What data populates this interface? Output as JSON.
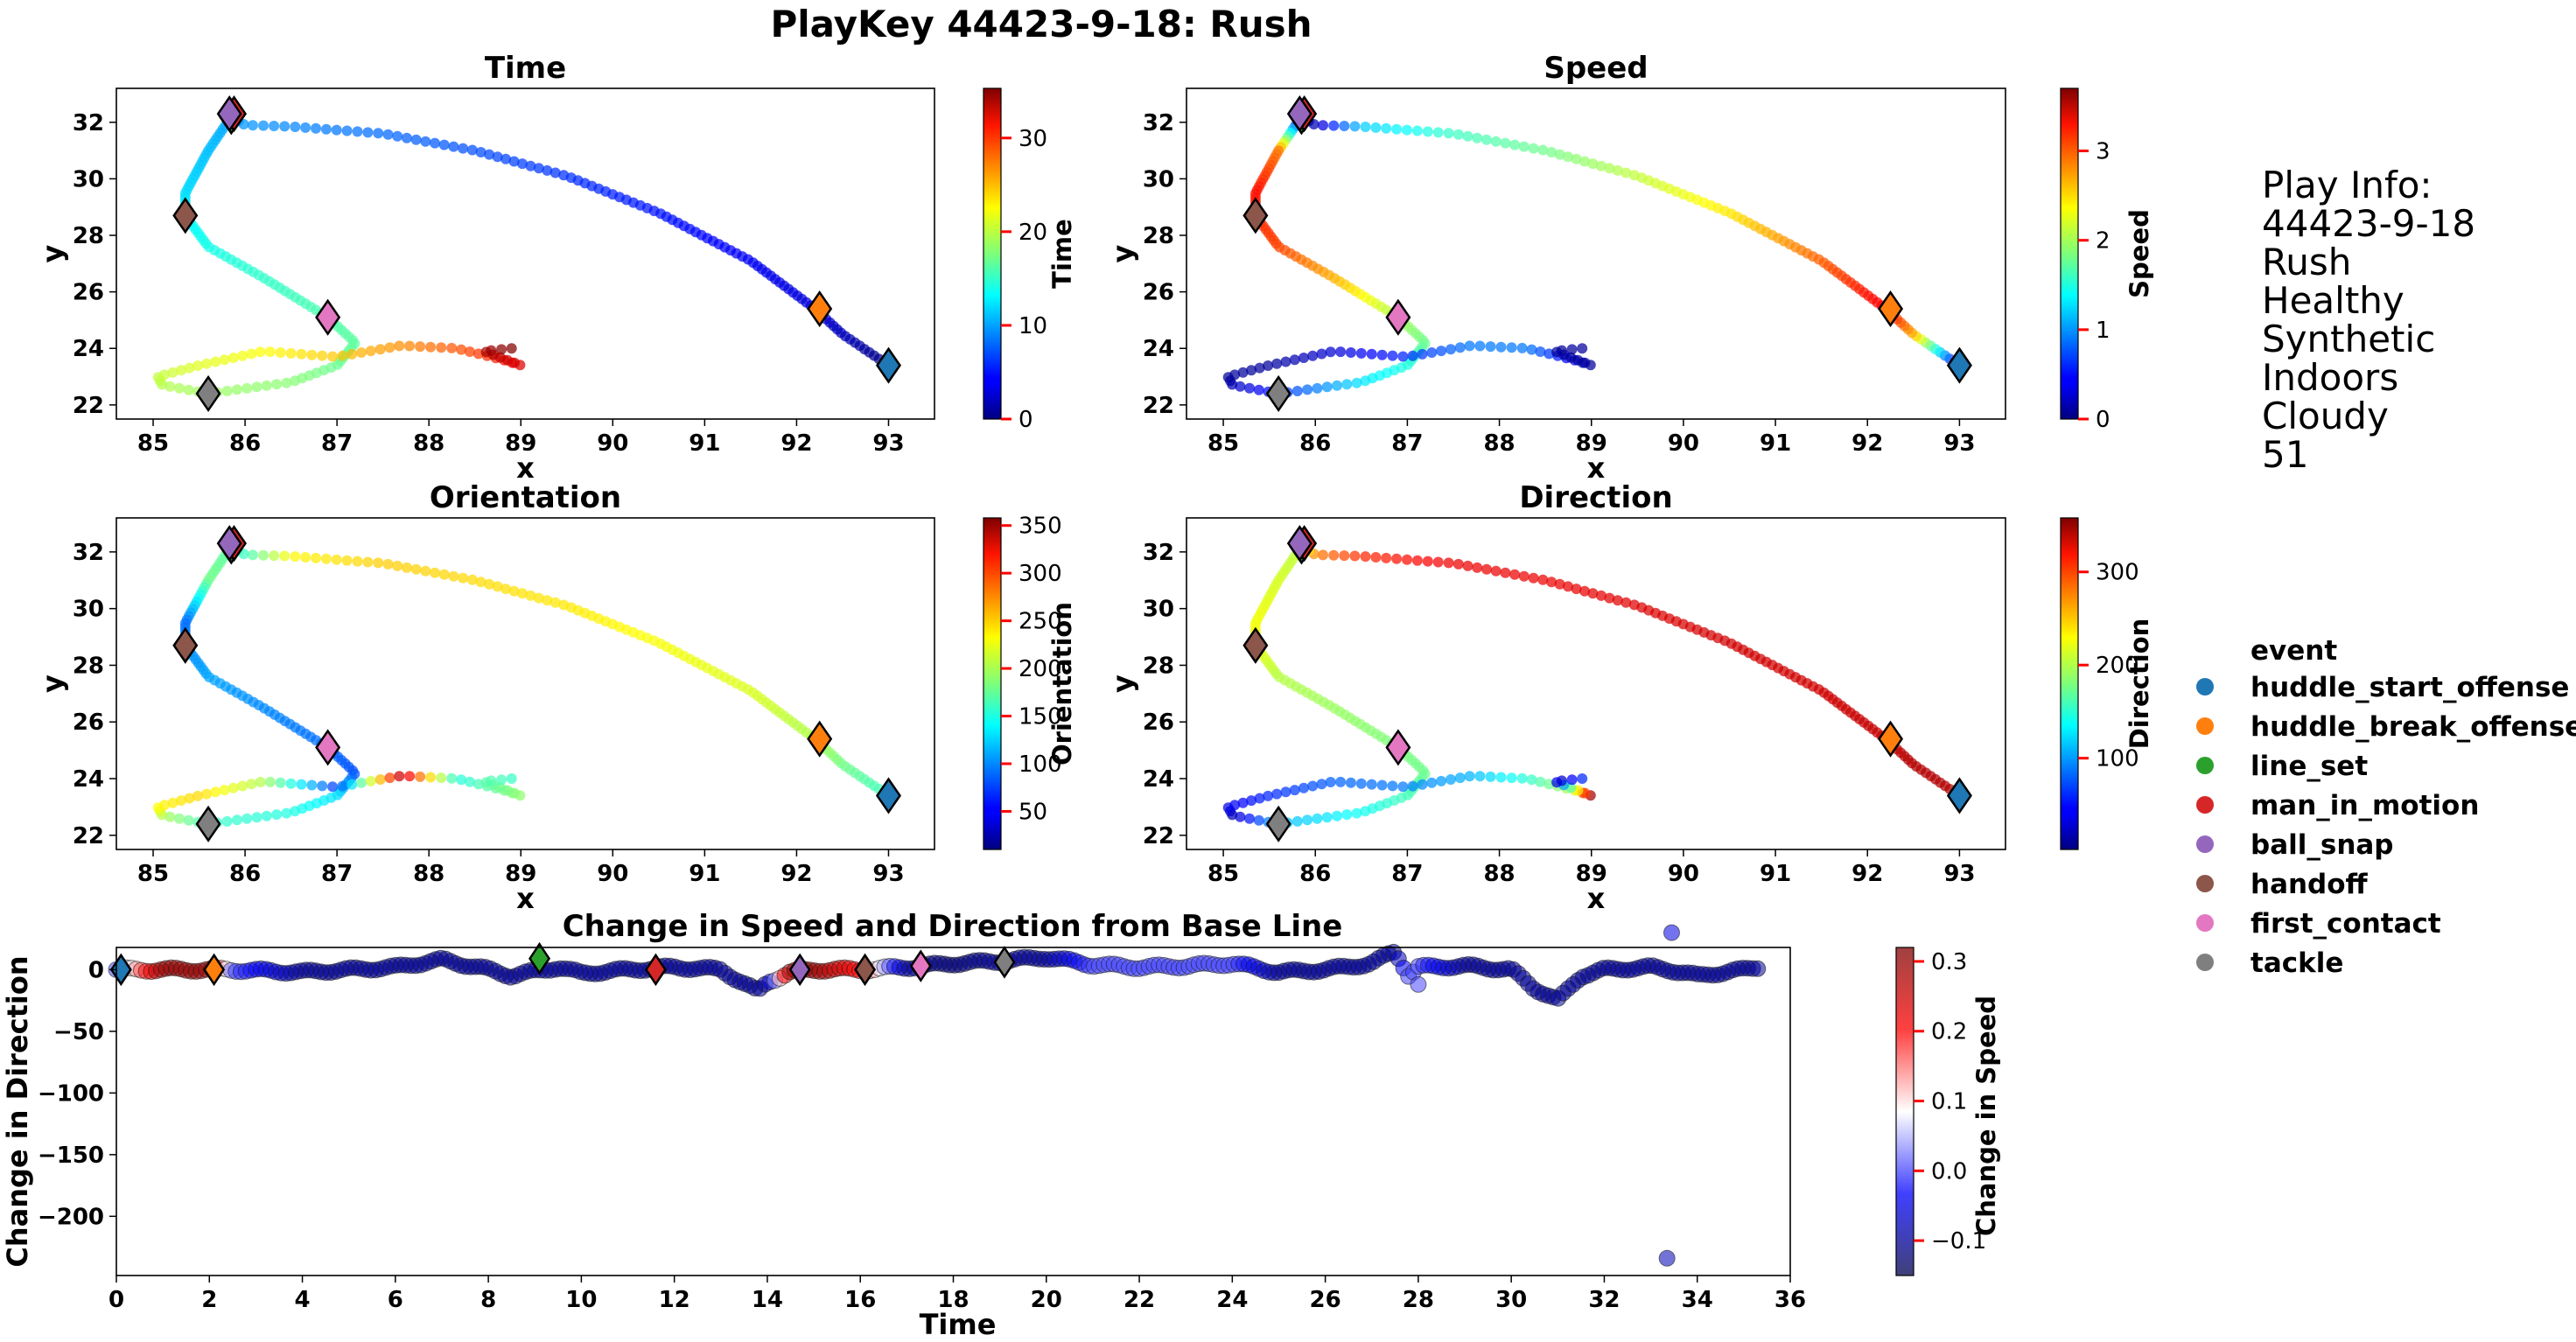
{
  "figure": {
    "title": "PlayKey 44423-9-18: Rush"
  },
  "play_info": {
    "lines": [
      "Play Info:",
      "44423-9-18",
      "Rush",
      "Healthy",
      "Synthetic",
      "Indoors",
      "Cloudy",
      "51"
    ]
  },
  "legend": {
    "title": "event",
    "items": [
      {
        "label": "huddle_start_offense",
        "color": "#1f77b4"
      },
      {
        "label": "huddle_break_offense",
        "color": "#ff7f0e"
      },
      {
        "label": "line_set",
        "color": "#2ca02c"
      },
      {
        "label": "man_in_motion",
        "color": "#d62728"
      },
      {
        "label": "ball_snap",
        "color": "#9467bd"
      },
      {
        "label": "handoff",
        "color": "#8c564b"
      },
      {
        "label": "first_contact",
        "color": "#e377c2"
      },
      {
        "label": "tackle",
        "color": "#7f7f7f"
      }
    ]
  },
  "chart_data": [
    {
      "type": "scatter",
      "title": "Time",
      "xlabel": "x",
      "ylabel": "y",
      "xlim": [
        84.6,
        93.5
      ],
      "ylim": [
        21.5,
        33.2
      ],
      "xticks": [
        85,
        86,
        87,
        88,
        89,
        90,
        91,
        92,
        93
      ],
      "yticks": [
        22,
        24,
        26,
        28,
        30,
        32
      ],
      "colorbar": {
        "label": "Time",
        "range": [
          0,
          35.3
        ],
        "ticks": [
          0,
          10,
          20,
          30
        ],
        "colormap": "jet"
      },
      "track": [
        [
          93.0,
          23.4
        ],
        [
          92.5,
          24.5
        ],
        [
          92.2,
          25.4
        ],
        [
          91.5,
          27.1
        ],
        [
          90.5,
          28.8
        ],
        [
          89.5,
          30.1
        ],
        [
          88.5,
          31.0
        ],
        [
          87.5,
          31.6
        ],
        [
          86.5,
          31.85
        ],
        [
          86.0,
          31.9
        ],
        [
          85.85,
          32.2
        ],
        [
          85.6,
          31.0
        ],
        [
          85.35,
          29.5
        ],
        [
          85.35,
          28.7
        ],
        [
          85.6,
          27.6
        ],
        [
          86.2,
          26.5
        ],
        [
          86.9,
          25.1
        ],
        [
          87.2,
          24.2
        ],
        [
          87.0,
          23.4
        ],
        [
          86.5,
          22.8
        ],
        [
          85.6,
          22.4
        ],
        [
          85.1,
          22.7
        ],
        [
          85.05,
          23.0
        ],
        [
          85.5,
          23.4
        ],
        [
          86.2,
          23.9
        ],
        [
          87.0,
          23.7
        ],
        [
          87.7,
          24.1
        ],
        [
          88.3,
          24.0
        ],
        [
          88.8,
          23.6
        ],
        [
          89.0,
          23.4
        ],
        [
          88.6,
          23.9
        ],
        [
          88.9,
          24.0
        ]
      ],
      "time_values": [
        0,
        2,
        3,
        4,
        5,
        6,
        7,
        8,
        9,
        9.5,
        10,
        11,
        12,
        13,
        14,
        15,
        16,
        16.5,
        17,
        18,
        18.7,
        19.5,
        20,
        21,
        22,
        24,
        26,
        28,
        30,
        32,
        34,
        35.3
      ],
      "speed_values": [
        0.2,
        2.6,
        3.3,
        2.9,
        2.4,
        2.1,
        1.8,
        1.6,
        1.2,
        0.2,
        0.1,
        2.8,
        3.2,
        3.1,
        3.0,
        2.6,
        2.0,
        1.8,
        1.5,
        1.3,
        0.6,
        0.2,
        0.1,
        0.1,
        0.3,
        0.6,
        0.9,
        0.9,
        0.4,
        0.1,
        0.1,
        0.1
      ],
      "orientation_values": [
        160,
        180,
        200,
        215,
        225,
        235,
        240,
        245,
        230,
        160,
        170,
        180,
        90,
        100,
        110,
        100,
        90,
        80,
        130,
        150,
        160,
        200,
        230,
        240,
        200,
        70,
        340,
        150,
        180,
        190,
        170,
        160
      ],
      "direction_values": [
        340,
        340,
        335,
        330,
        330,
        325,
        320,
        320,
        300,
        270,
        200,
        210,
        220,
        220,
        200,
        190,
        180,
        175,
        160,
        140,
        110,
        20,
        40,
        60,
        80,
        90,
        110,
        150,
        200,
        350,
        20,
        60
      ],
      "events": [
        {
          "event": "huddle_start_offense",
          "x": 93.0,
          "y": 23.4
        },
        {
          "event": "huddle_break_offense",
          "x": 92.25,
          "y": 25.4
        },
        {
          "event": "line_set",
          "x": 85.85,
          "y": 32.2
        },
        {
          "event": "man_in_motion",
          "x": 85.88,
          "y": 32.3
        },
        {
          "event": "ball_snap",
          "x": 85.83,
          "y": 32.3
        },
        {
          "event": "handoff",
          "x": 85.35,
          "y": 28.7
        },
        {
          "event": "first_contact",
          "x": 86.9,
          "y": 25.1
        },
        {
          "event": "tackle",
          "x": 85.6,
          "y": 22.4
        }
      ]
    },
    {
      "type": "scatter",
      "title": "Speed",
      "xlabel": "x",
      "ylabel": "y",
      "xlim": [
        84.6,
        93.5
      ],
      "ylim": [
        21.5,
        33.2
      ],
      "xticks": [
        85,
        86,
        87,
        88,
        89,
        90,
        91,
        92,
        93
      ],
      "yticks": [
        22,
        24,
        26,
        28,
        30,
        32
      ],
      "colorbar": {
        "label": "Speed",
        "range": [
          0,
          3.7
        ],
        "ticks": [
          0,
          1,
          2,
          3
        ],
        "colormap": "jet"
      }
    },
    {
      "type": "scatter",
      "title": "Orientation",
      "xlabel": "x",
      "ylabel": "y",
      "xlim": [
        84.6,
        93.5
      ],
      "ylim": [
        21.5,
        33.2
      ],
      "xticks": [
        85,
        86,
        87,
        88,
        89,
        90,
        91,
        92,
        93
      ],
      "yticks": [
        22,
        24,
        26,
        28,
        30,
        32
      ],
      "colorbar": {
        "label": "Orientation",
        "range": [
          10,
          358
        ],
        "ticks": [
          50,
          100,
          150,
          200,
          250,
          300,
          350
        ],
        "colormap": "jet"
      }
    },
    {
      "type": "scatter",
      "title": "Direction",
      "xlabel": "x",
      "ylabel": "y",
      "xlim": [
        84.6,
        93.5
      ],
      "ylim": [
        21.5,
        33.2
      ],
      "xticks": [
        85,
        86,
        87,
        88,
        89,
        90,
        91,
        92,
        93
      ],
      "yticks": [
        22,
        24,
        26,
        28,
        30,
        32
      ],
      "colorbar": {
        "label": "Direction",
        "range": [
          2,
          358
        ],
        "ticks": [
          100,
          200,
          300
        ],
        "colormap": "jet"
      }
    },
    {
      "type": "scatter",
      "title": "Change in Speed and Direction from Base Line",
      "xlabel": "Time",
      "ylabel": "Change in Direction",
      "xlim": [
        0,
        36
      ],
      "ylim": [
        -248,
        18
      ],
      "xticks": [
        0,
        2,
        4,
        6,
        8,
        10,
        12,
        14,
        16,
        18,
        20,
        22,
        24,
        26,
        28,
        30,
        32,
        34,
        36
      ],
      "yticks": [
        0,
        -50,
        -100,
        -150,
        -200
      ],
      "colorbar": {
        "label": "Change in Speed",
        "range": [
          -0.15,
          0.32
        ],
        "ticks": [
          -0.1,
          0.0,
          0.1,
          0.2,
          0.3
        ],
        "colormap": "seismic"
      },
      "series_keypoints": {
        "time": [
          0,
          1,
          2,
          2.5,
          4,
          6,
          7,
          8,
          8.5,
          9.5,
          10,
          11,
          12,
          13,
          13.8,
          14,
          14.5,
          15,
          16,
          17,
          18,
          19,
          20,
          21,
          22,
          23,
          24,
          25,
          26,
          27,
          27.5,
          27.8,
          28,
          29,
          30,
          30.5,
          31,
          31.5,
          32,
          33,
          33.4,
          34,
          35,
          35.3
        ],
        "direction_change": [
          0,
          0,
          0,
          0,
          -2,
          2,
          8,
          0,
          -5,
          2,
          -3,
          0,
          2,
          0,
          -18,
          -10,
          -2,
          0,
          0,
          2,
          5,
          7,
          10,
          4,
          2,
          3,
          5,
          -2,
          0,
          5,
          15,
          -5,
          2,
          3,
          0,
          -15,
          -25,
          -5,
          0,
          2,
          0,
          -5,
          0,
          2
        ],
        "speed_change": [
          0.0,
          0.3,
          0.3,
          0.0,
          -0.1,
          -0.1,
          -0.1,
          -0.1,
          -0.1,
          -0.1,
          -0.1,
          -0.1,
          -0.1,
          -0.1,
          -0.1,
          -0.1,
          0.3,
          0.3,
          0.2,
          -0.1,
          -0.12,
          -0.1,
          -0.1,
          0.0,
          0.0,
          0.0,
          0.0,
          -0.1,
          -0.1,
          -0.1,
          -0.1,
          0.0,
          0.0,
          -0.1,
          -0.1,
          -0.1,
          -0.1,
          -0.1,
          -0.1,
          -0.1,
          -0.1,
          -0.1,
          -0.1,
          -0.1
        ]
      },
      "outliers": [
        {
          "time": 33.45,
          "direction_change": 30,
          "speed_change": -0.05
        },
        {
          "time": 33.35,
          "direction_change": -234,
          "speed_change": -0.08
        },
        {
          "time": 28.0,
          "direction_change": -12,
          "speed_change": 0.0
        }
      ],
      "events": [
        {
          "event": "huddle_start_offense",
          "time": 0.1,
          "direction_change": 0
        },
        {
          "event": "huddle_break_offense",
          "time": 2.1,
          "direction_change": 0
        },
        {
          "event": "line_set",
          "time": 9.1,
          "direction_change": 9
        },
        {
          "event": "man_in_motion",
          "time": 11.6,
          "direction_change": 0
        },
        {
          "event": "ball_snap",
          "time": 14.7,
          "direction_change": 0
        },
        {
          "event": "handoff",
          "time": 16.1,
          "direction_change": 0
        },
        {
          "event": "first_contact",
          "time": 17.3,
          "direction_change": 3
        },
        {
          "event": "tackle",
          "time": 19.1,
          "direction_change": 6
        }
      ]
    }
  ]
}
